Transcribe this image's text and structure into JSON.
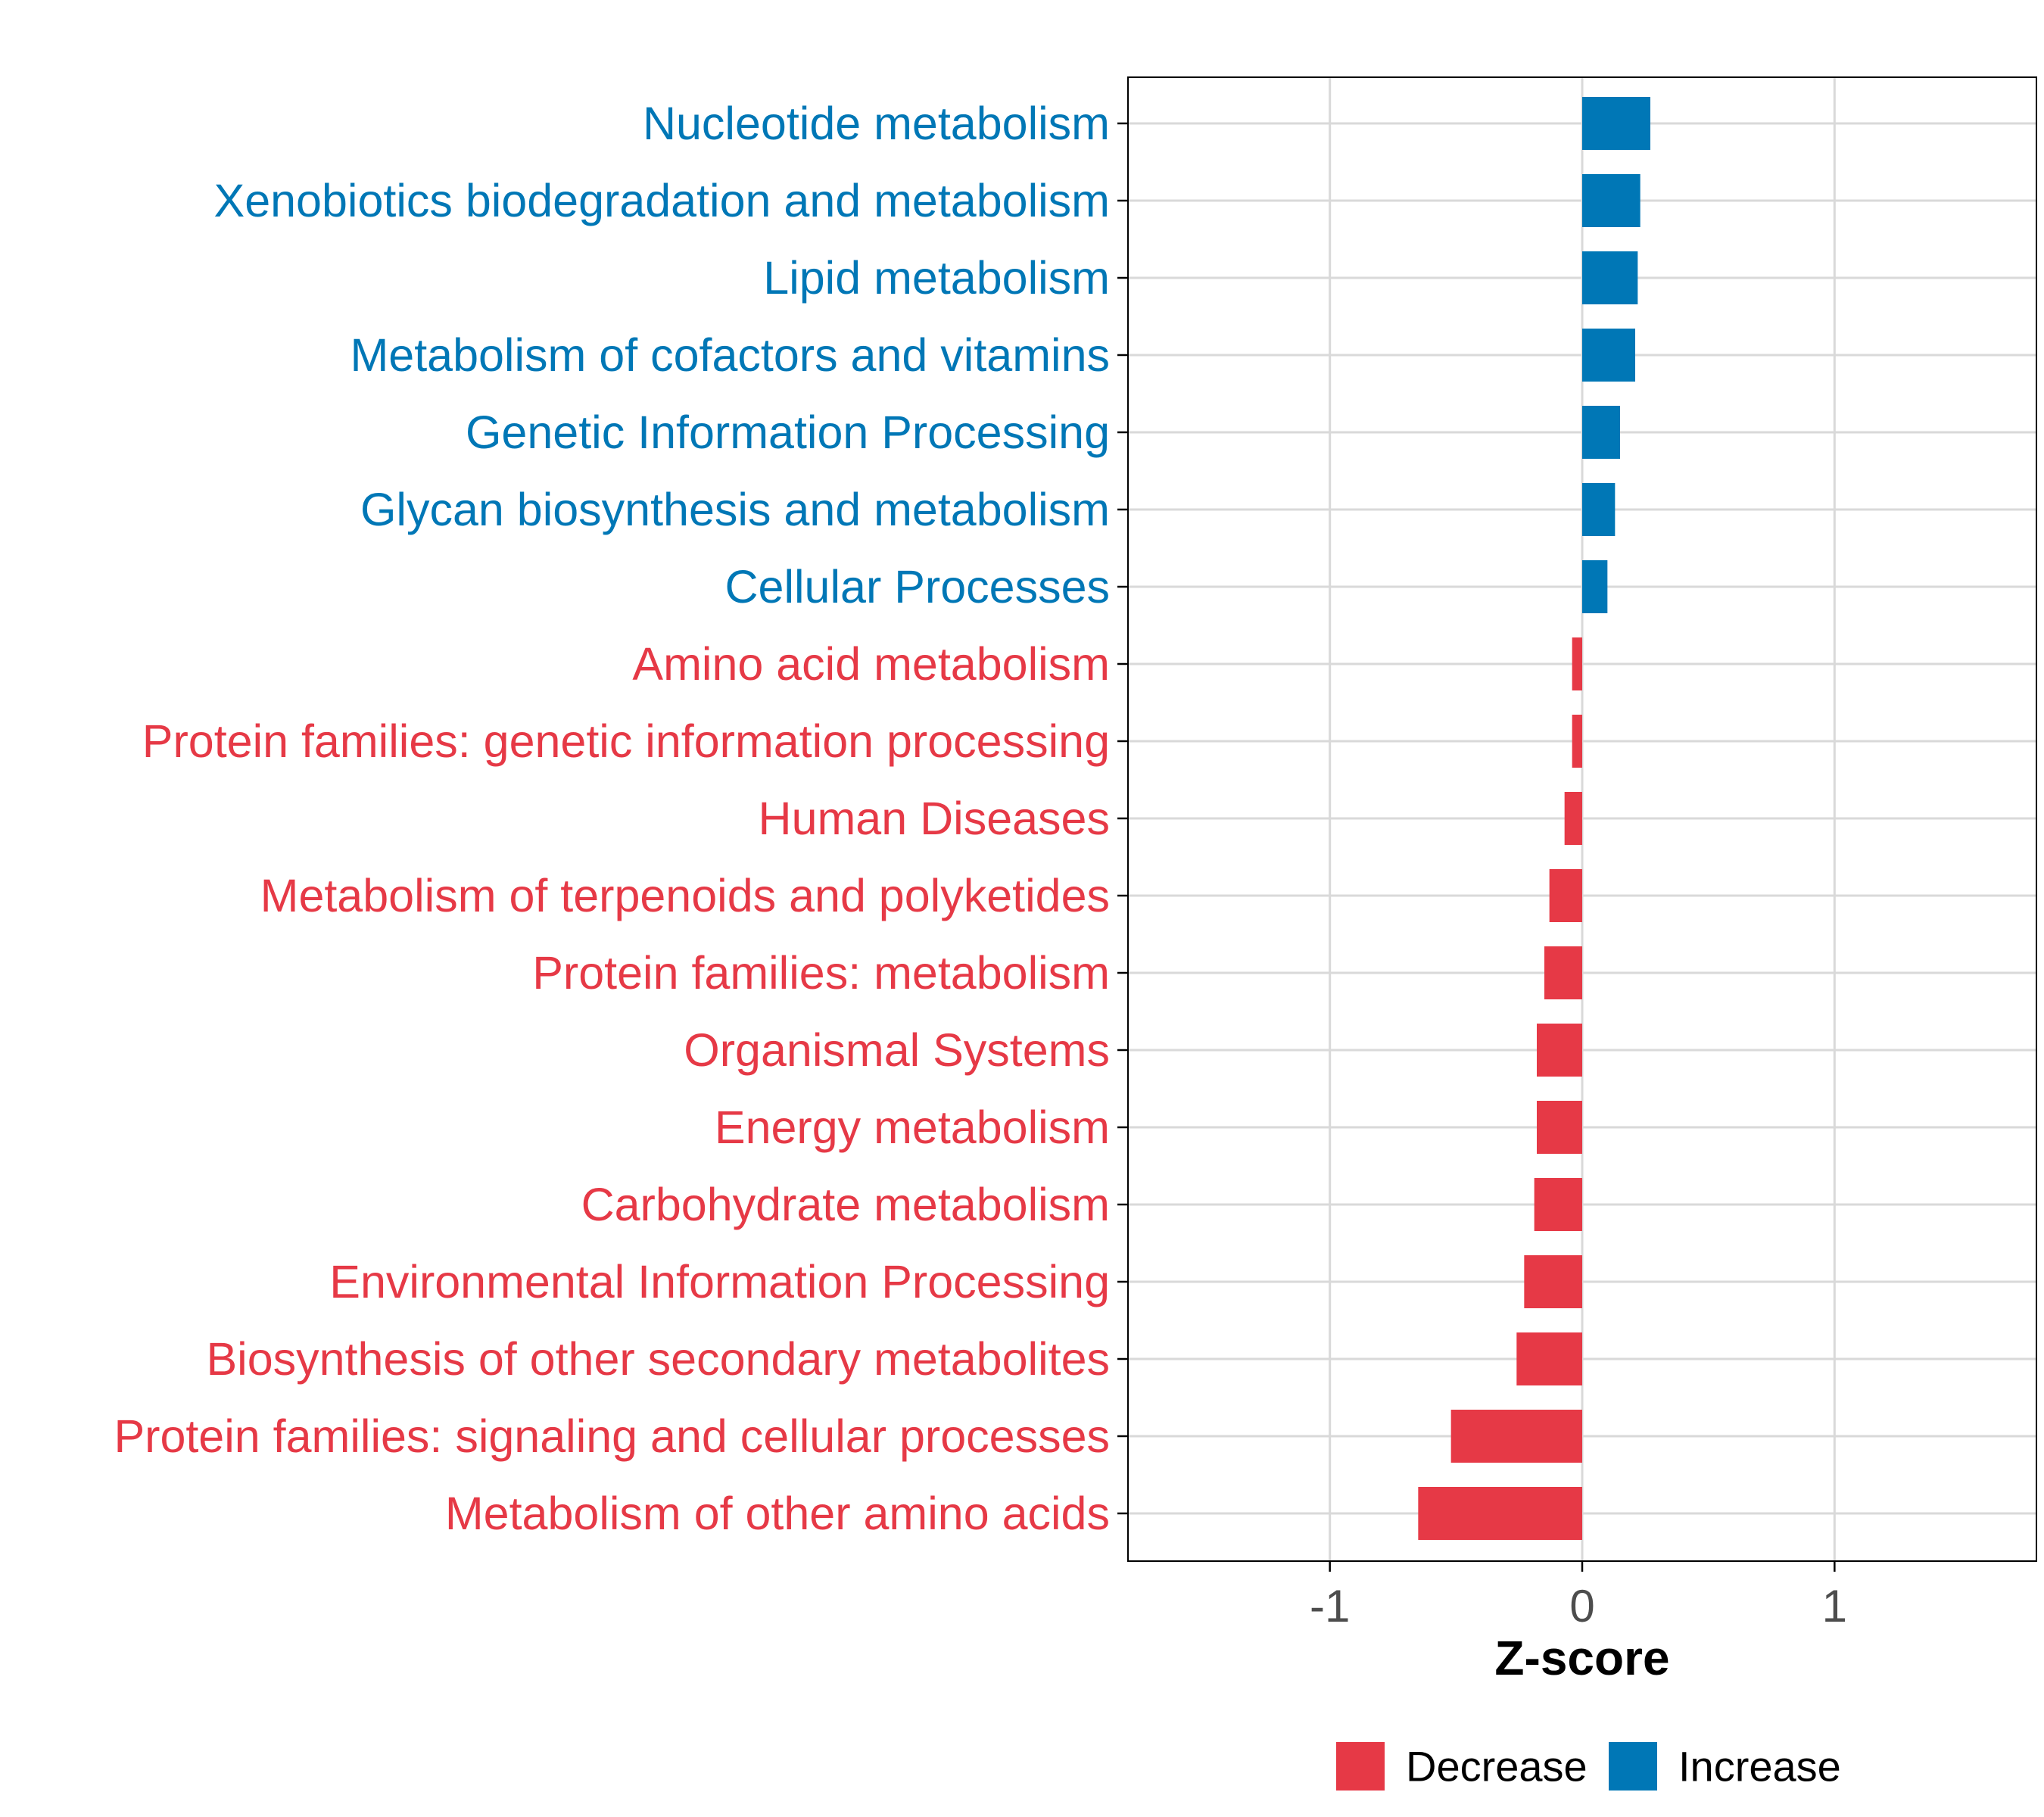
{
  "chart_data": {
    "type": "bar",
    "orientation": "horizontal",
    "xlabel": "Z-score",
    "ylabel": "",
    "xlim": [
      -1.8,
      1.8
    ],
    "x_ticks": [
      -1,
      0,
      1
    ],
    "x_tick_labels": [
      "-1",
      "0",
      "1"
    ],
    "grid": true,
    "categories": [
      "Nucleotide metabolism",
      "Xenobiotics biodegradation and metabolism",
      "Lipid metabolism",
      "Metabolism of cofactors and vitamins",
      "Genetic Information Processing",
      "Glycan biosynthesis and metabolism",
      "Cellular Processes",
      "Amino acid metabolism",
      "Protein families: genetic information processing",
      "Human Diseases",
      "Metabolism of terpenoids and polyketides",
      "Protein families: metabolism",
      "Organismal Systems",
      "Energy metabolism",
      "Carbohydrate metabolism",
      "Environmental Information Processing",
      "Biosynthesis of other secondary metabolites",
      "Protein families: signaling and cellular processes",
      "Metabolism of other amino acids"
    ],
    "values": [
      0.27,
      0.23,
      0.22,
      0.21,
      0.15,
      0.13,
      0.1,
      -0.04,
      -0.04,
      -0.07,
      -0.13,
      -0.15,
      -0.18,
      -0.18,
      -0.19,
      -0.23,
      -0.26,
      -0.52,
      -0.65
    ],
    "legend": {
      "position": "bottom",
      "entries": [
        {
          "label": "Decrease",
          "color": "#E63946"
        },
        {
          "label": "Increase",
          "color": "#0077B6"
        }
      ]
    },
    "colors": {
      "increase": "#0077B6",
      "decrease": "#E63946",
      "grid": "#D9D9D9",
      "axis": "#000000",
      "tick_label": "#4D4D4D"
    }
  }
}
